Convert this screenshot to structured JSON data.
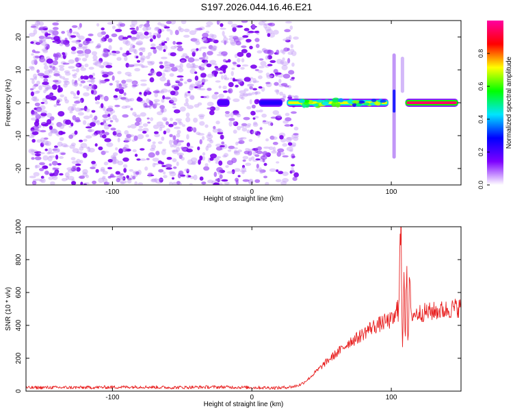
{
  "title": "S197.2026.044.16.46.E21",
  "chart_data": [
    {
      "type": "heatmap",
      "title": "S197.2026.044.16.46.E21",
      "xlabel": "Height of straight line (km)",
      "ylabel": "Frequency (Hz)",
      "xlim": [
        -162,
        150
      ],
      "ylim": [
        -25,
        25
      ],
      "x_ticks": [
        -100,
        0,
        100
      ],
      "y_ticks": [
        -20,
        -10,
        0,
        10,
        20
      ],
      "noise_region_x": [
        -162,
        28
      ],
      "signal_band": {
        "frequency_hz": 0,
        "segments": [
          {
            "x_start": -25,
            "x_end": -16,
            "amplitude": 0.2
          },
          {
            "x_start": 5,
            "x_end": 22,
            "amplitude": 0.25
          },
          {
            "x_start": 25,
            "x_end": 98,
            "amplitude": 0.7
          },
          {
            "x_start": 110,
            "x_end": 148,
            "amplitude": 0.95
          }
        ],
        "spike": {
          "x": 102,
          "freq_range": [
            -17,
            15
          ]
        },
        "spike2": {
          "x": 108,
          "freq_range": [
            3,
            14
          ]
        }
      },
      "colorbar": {
        "label": "Normalized spectral amplitude",
        "range": [
          0.0,
          1.0
        ],
        "ticks": [
          0.0,
          0.2,
          0.4,
          0.6,
          0.8
        ],
        "tick_labels": [
          "0.0",
          "0.2",
          "0.4",
          "0.6",
          "0.8"
        ],
        "colormap": [
          "#ffffff",
          "#7d00ff",
          "#0000ff",
          "#00e5ff",
          "#00ff00",
          "#ffff00",
          "#ff0000",
          "#ff00a0"
        ]
      }
    },
    {
      "type": "line",
      "xlabel": "Height of straight line (km)",
      "ylabel": "SNR (10 * v/v)",
      "xlim": [
        -162,
        150
      ],
      "ylim": [
        0,
        1000
      ],
      "x_ticks": [
        -100,
        0,
        100
      ],
      "y_ticks": [
        0,
        200,
        400,
        600,
        800,
        1000
      ],
      "line_color": "#e82020",
      "series": [
        {
          "name": "SNR",
          "x": [
            -162,
            -150,
            -120,
            -100,
            -80,
            -60,
            -40,
            -20,
            0,
            20,
            30,
            35,
            40,
            45,
            50,
            55,
            60,
            65,
            70,
            75,
            80,
            85,
            90,
            95,
            100,
            103,
            105,
            107,
            108,
            109,
            110,
            111,
            112,
            113,
            114,
            115,
            118,
            120,
            125,
            130,
            135,
            140,
            145,
            150
          ],
          "y": [
            20,
            22,
            22,
            24,
            26,
            22,
            24,
            25,
            22,
            20,
            28,
            40,
            70,
            110,
            150,
            190,
            225,
            260,
            300,
            320,
            350,
            385,
            400,
            420,
            430,
            450,
            560,
            980,
            180,
            880,
            300,
            920,
            150,
            760,
            420,
            470,
            470,
            475,
            480,
            485,
            490,
            495,
            505,
            510
          ]
        }
      ]
    }
  ]
}
